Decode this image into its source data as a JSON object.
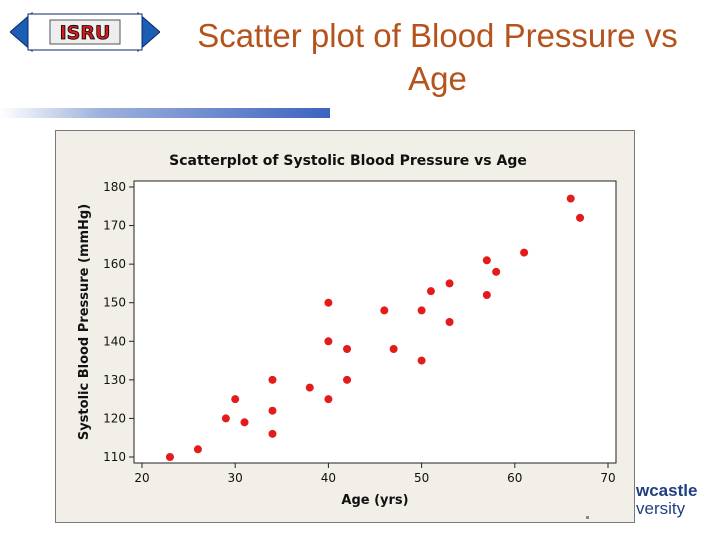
{
  "logo": {
    "text": "ISRU"
  },
  "slide": {
    "title": "Scatter plot of Blood Pressure vs Age"
  },
  "university": {
    "line1": "wcastle",
    "line2": "versity"
  },
  "chart_data": {
    "type": "scatter",
    "title": "Scatterplot of Systolic Blood Pressure vs Age",
    "xlabel": "Age (yrs)",
    "ylabel": "Systolic Blood Pressure (mmHg)",
    "xlim": [
      20,
      70
    ],
    "ylim": [
      110,
      180
    ],
    "x_ticks": [
      20,
      30,
      40,
      50,
      60,
      70
    ],
    "y_ticks": [
      110,
      120,
      130,
      140,
      150,
      160,
      170,
      180
    ],
    "grid": false,
    "point_color": "#e31b1b",
    "points": [
      {
        "x": 23,
        "y": 110
      },
      {
        "x": 26,
        "y": 112
      },
      {
        "x": 29,
        "y": 120
      },
      {
        "x": 30,
        "y": 125
      },
      {
        "x": 31,
        "y": 119
      },
      {
        "x": 34,
        "y": 130
      },
      {
        "x": 34,
        "y": 122
      },
      {
        "x": 34,
        "y": 116
      },
      {
        "x": 38,
        "y": 128
      },
      {
        "x": 40,
        "y": 150
      },
      {
        "x": 40,
        "y": 140
      },
      {
        "x": 40,
        "y": 125
      },
      {
        "x": 42,
        "y": 138
      },
      {
        "x": 42,
        "y": 130
      },
      {
        "x": 46,
        "y": 148
      },
      {
        "x": 47,
        "y": 138
      },
      {
        "x": 50,
        "y": 148
      },
      {
        "x": 50,
        "y": 135
      },
      {
        "x": 51,
        "y": 153
      },
      {
        "x": 53,
        "y": 155
      },
      {
        "x": 53,
        "y": 145
      },
      {
        "x": 57,
        "y": 161
      },
      {
        "x": 57,
        "y": 152
      },
      {
        "x": 58,
        "y": 158
      },
      {
        "x": 61,
        "y": 163
      },
      {
        "x": 66,
        "y": 177
      },
      {
        "x": 67,
        "y": 172
      }
    ]
  }
}
